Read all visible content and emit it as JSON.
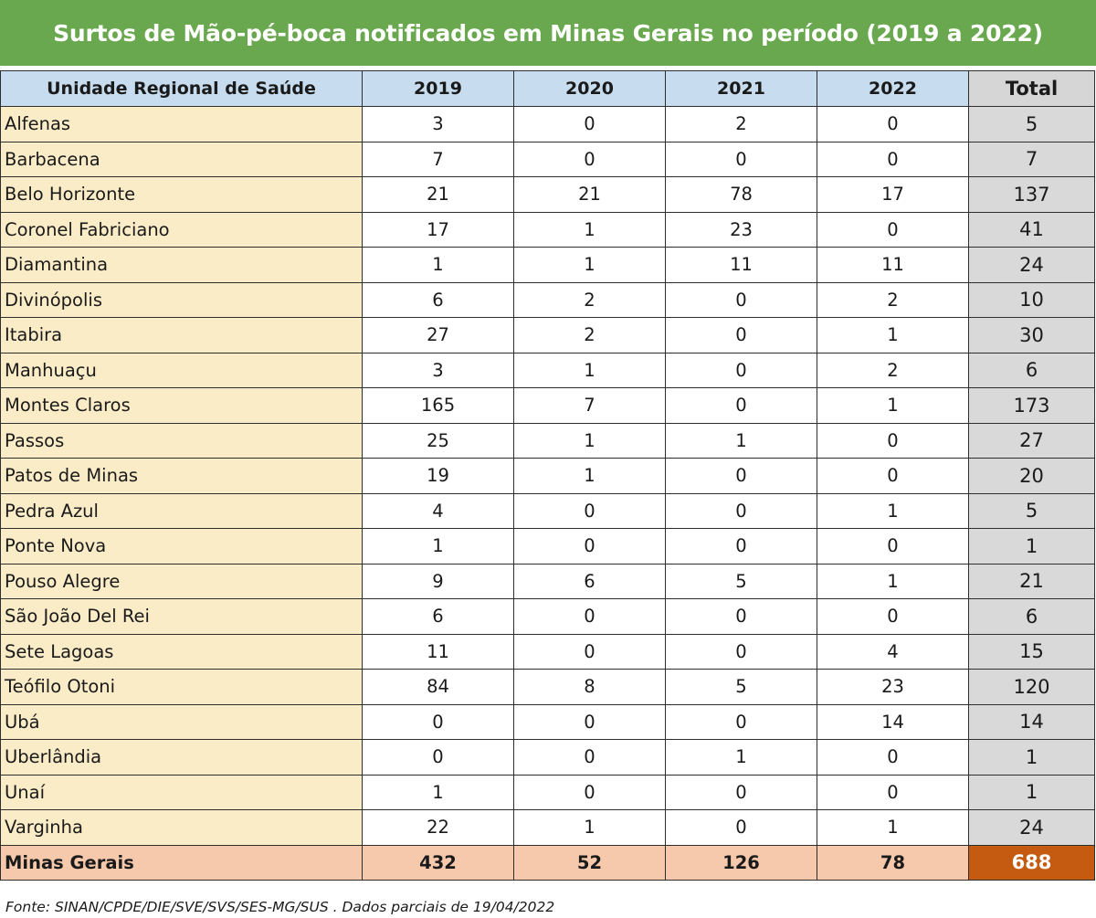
{
  "title": "Surtos de Mão-pé-boca notificados em Minas Gerais no período (2019 a 2022)",
  "table": {
    "headers": [
      "Unidade Regional de Saúde",
      "2019",
      "2020",
      "2021",
      "2022",
      "Total"
    ],
    "rows": [
      [
        "Alfenas",
        "3",
        "0",
        "2",
        "0",
        "5"
      ],
      [
        "Barbacena",
        "7",
        "0",
        "0",
        "0",
        "7"
      ],
      [
        "Belo Horizonte",
        "21",
        "21",
        "78",
        "17",
        "137"
      ],
      [
        "Coronel Fabriciano",
        "17",
        "1",
        "23",
        "0",
        "41"
      ],
      [
        "Diamantina",
        "1",
        "1",
        "11",
        "11",
        "24"
      ],
      [
        "Divinópolis",
        "6",
        "2",
        "0",
        "2",
        "10"
      ],
      [
        "Itabira",
        "27",
        "2",
        "0",
        "1",
        "30"
      ],
      [
        "Manhuaçu",
        "3",
        "1",
        "0",
        "2",
        "6"
      ],
      [
        "Montes Claros",
        "165",
        "7",
        "0",
        "1",
        "173"
      ],
      [
        "Passos",
        "25",
        "1",
        "1",
        "0",
        "27"
      ],
      [
        "Patos de Minas",
        "19",
        "1",
        "0",
        "0",
        "20"
      ],
      [
        "Pedra Azul",
        "4",
        "0",
        "0",
        "1",
        "5"
      ],
      [
        "Ponte Nova",
        "1",
        "0",
        "0",
        "0",
        "1"
      ],
      [
        "Pouso Alegre",
        "9",
        "6",
        "5",
        "1",
        "21"
      ],
      [
        "São João Del Rei",
        "6",
        "0",
        "0",
        "0",
        "6"
      ],
      [
        "Sete Lagoas",
        "11",
        "0",
        "0",
        "4",
        "15"
      ],
      [
        "Teófilo Otoni",
        "84",
        "8",
        "5",
        "23",
        "120"
      ],
      [
        "Ubá",
        "0",
        "0",
        "0",
        "14",
        "14"
      ],
      [
        "Uberlândia",
        "0",
        "0",
        "1",
        "0",
        "1"
      ],
      [
        "Unaí",
        "1",
        "0",
        "0",
        "0",
        "1"
      ],
      [
        "Varginha",
        "22",
        "1",
        "0",
        "1",
        "24"
      ]
    ],
    "summary": [
      "Minas Gerais",
      "432",
      "52",
      "126",
      "78",
      "688"
    ]
  },
  "source": "Fonte: SINAN/CPDE/DIE/SVE/SVS/SES-MG/SUS . Dados parciais de 19/04/2022",
  "colors": {
    "title_bg": "#6aa84f",
    "header_bg": "#c7ddef",
    "region_bg": "#fbecc8",
    "total_bg": "#d9d9d9",
    "summary_bg": "#f6c9ac",
    "summary_total_bg": "#c55a11"
  }
}
